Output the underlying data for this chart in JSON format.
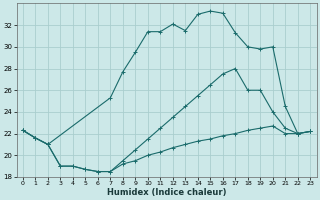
{
  "xlabel": "Humidex (Indice chaleur)",
  "background_color": "#cce8e8",
  "grid_color": "#aacece",
  "line_color": "#1a6b6b",
  "xlim": [
    -0.5,
    23.5
  ],
  "ylim": [
    18,
    34
  ],
  "yticks": [
    18,
    20,
    22,
    24,
    26,
    28,
    30,
    32
  ],
  "xticks": [
    0,
    1,
    2,
    3,
    4,
    5,
    6,
    7,
    8,
    9,
    10,
    11,
    12,
    13,
    14,
    15,
    16,
    17,
    18,
    19,
    20,
    21,
    22,
    23
  ],
  "series1_x": [
    0,
    1,
    2,
    3,
    4,
    5,
    6,
    7,
    8,
    9,
    10,
    11,
    12,
    13,
    14,
    15,
    16,
    17,
    18,
    19,
    20,
    21,
    22,
    23
  ],
  "series1_y": [
    22.3,
    21.6,
    21.0,
    19.0,
    19.0,
    18.7,
    18.5,
    18.5,
    19.2,
    19.5,
    20.0,
    20.3,
    20.7,
    21.0,
    21.3,
    21.5,
    21.8,
    22.0,
    22.3,
    22.5,
    22.7,
    22.0,
    22.0,
    22.2
  ],
  "series2_x": [
    0,
    1,
    2,
    7,
    8,
    9,
    10,
    11,
    12,
    13,
    14,
    15,
    16,
    17,
    18,
    19,
    20,
    21,
    22,
    23
  ],
  "series2_y": [
    22.3,
    21.6,
    21.0,
    25.3,
    27.7,
    29.5,
    31.4,
    31.4,
    32.1,
    31.5,
    33.0,
    33.3,
    33.1,
    31.3,
    30.0,
    29.8,
    30.0,
    24.5,
    22.0,
    22.2
  ],
  "series3_x": [
    0,
    1,
    2,
    3,
    4,
    5,
    6,
    7,
    8,
    9,
    10,
    11,
    12,
    13,
    14,
    15,
    16,
    17,
    18,
    19,
    20,
    21,
    22,
    23
  ],
  "series3_y": [
    22.3,
    21.6,
    21.0,
    19.0,
    19.0,
    18.7,
    18.5,
    18.5,
    19.5,
    20.5,
    21.5,
    22.5,
    23.5,
    24.5,
    25.5,
    26.5,
    27.5,
    28.0,
    26.0,
    26.0,
    24.0,
    22.5,
    22.0,
    22.2
  ]
}
